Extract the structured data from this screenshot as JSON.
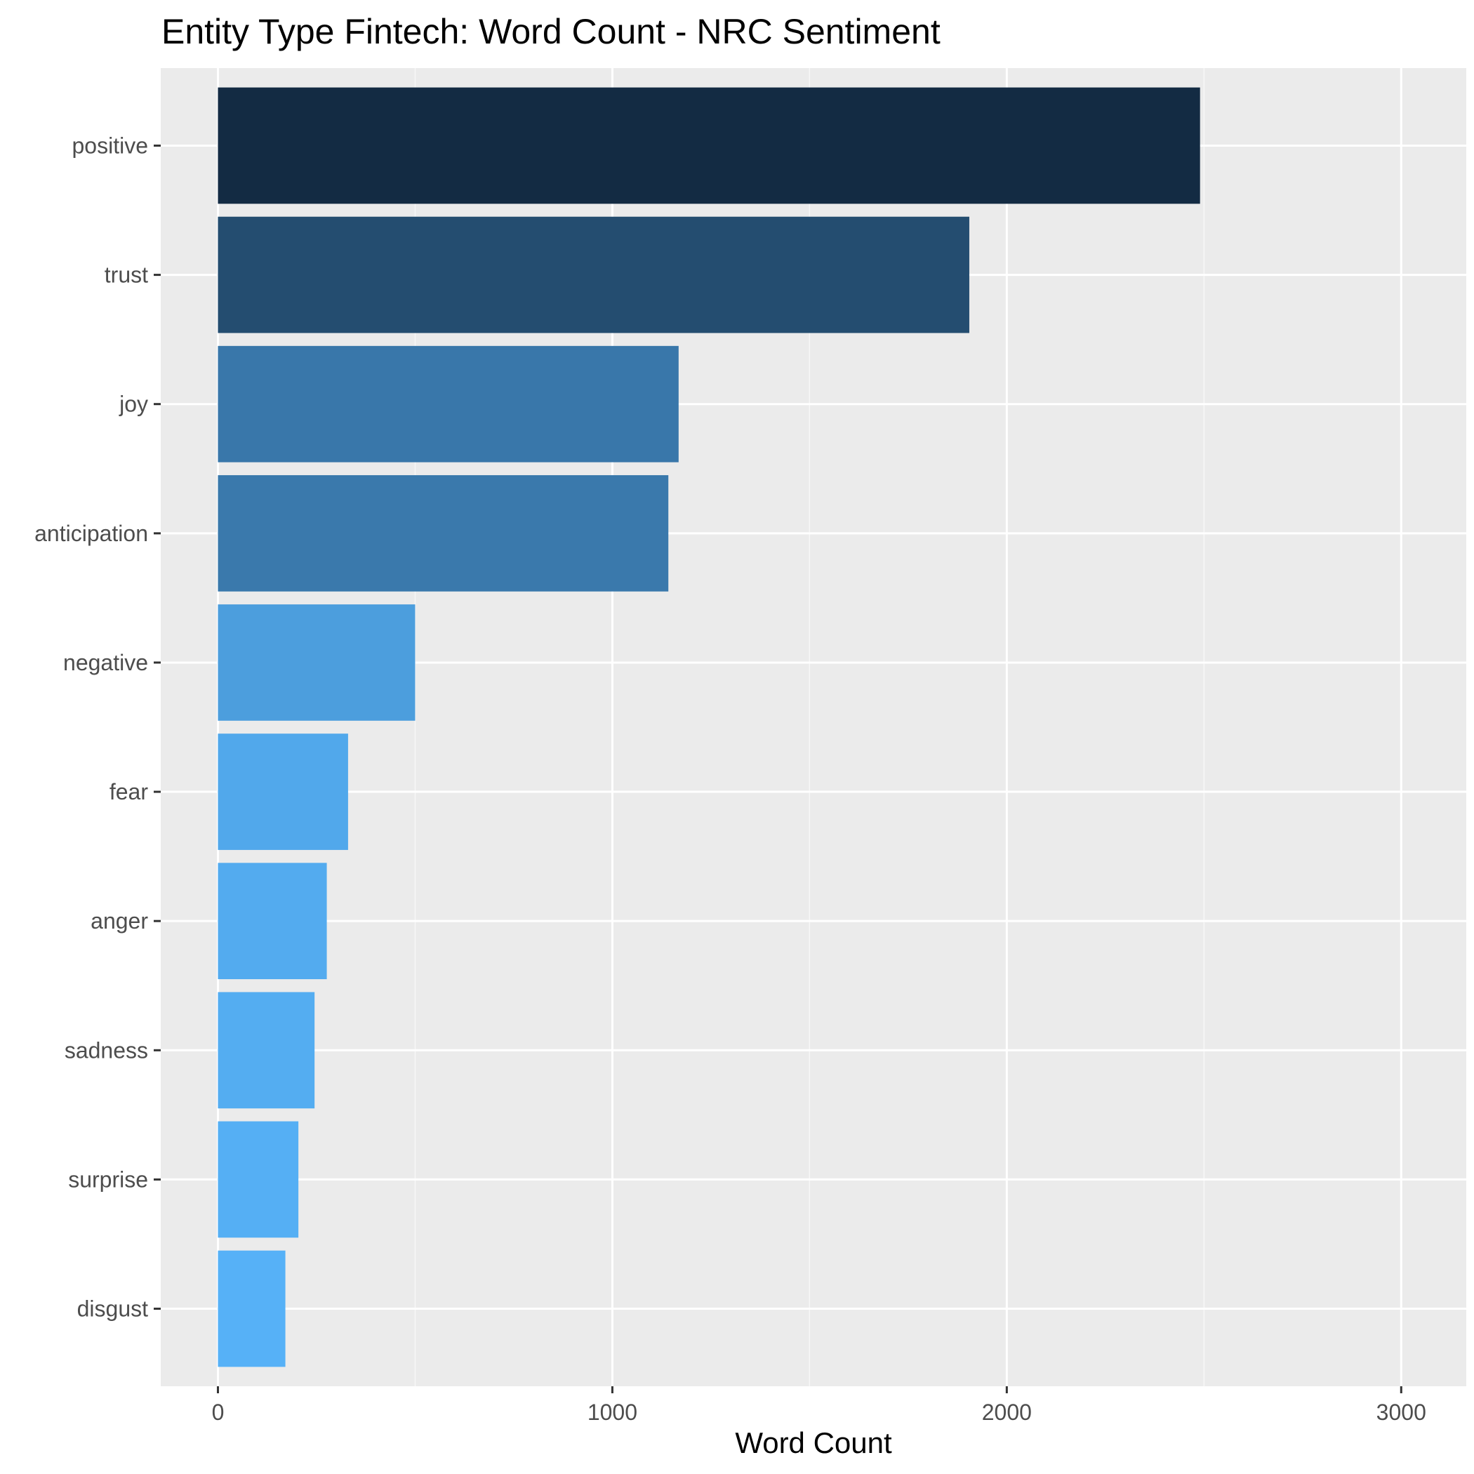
{
  "chart_data": {
    "type": "bar",
    "orientation": "horizontal",
    "title": "Entity Type Fintech: Word Count - NRC Sentiment",
    "xlabel": "Word Count",
    "ylabel": "",
    "categories": [
      "positive",
      "trust",
      "joy",
      "anticipation",
      "negative",
      "fear",
      "anger",
      "sadness",
      "surprise",
      "disgust"
    ],
    "values": [
      2490,
      1905,
      1168,
      1142,
      500,
      330,
      276,
      245,
      204,
      171
    ],
    "xlim": [
      -145,
      3165
    ],
    "x_ticks": [
      0,
      1000,
      2000,
      3000
    ],
    "x_tick_labels": [
      "0",
      "1000",
      "2000",
      "3000"
    ],
    "grid": true,
    "legend": "none",
    "colors": {
      "gradient_low": "#56b1f7",
      "gradient_high": "#132b43",
      "panel_background": "#ebebeb",
      "grid_major": "#ffffff",
      "grid_minor": "#f7f7f7"
    }
  }
}
